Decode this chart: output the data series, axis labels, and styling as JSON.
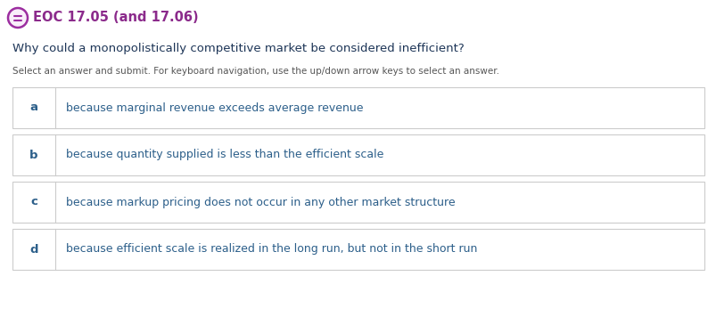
{
  "title": "EOC 17.05 (and 17.06)",
  "question": "Why could a monopolistically competitive market be considered inefficient?",
  "instruction": "Select an answer and submit. For keyboard navigation, use the up/down arrow keys to select an answer.",
  "options": [
    {
      "label": "a",
      "text": "because marginal revenue exceeds average revenue"
    },
    {
      "label": "b",
      "text": "because quantity supplied is less than the efficient scale"
    },
    {
      "label": "c",
      "text": "because markup pricing does not occur in any other market structure"
    },
    {
      "label": "d",
      "text": "because efficient scale is realized in the long run, but not in the short run"
    }
  ],
  "bg_color": "#ffffff",
  "title_color": "#8b2a8b",
  "question_color": "#1d3557",
  "instruction_color": "#555555",
  "option_label_color": "#2c5f8a",
  "option_text_color": "#2c5f8a",
  "box_border_color": "#cccccc",
  "divider_color": "#cccccc",
  "icon_stroke_color": "#9c2ea0",
  "icon_fill_color": "#f9eefa"
}
